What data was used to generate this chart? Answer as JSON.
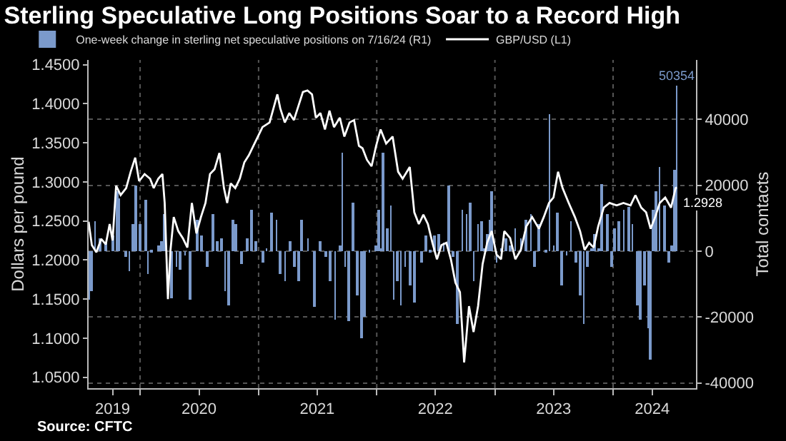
{
  "chart_data": {
    "type": "bar",
    "title": "Sterling Speculative Long Positions Soar to a Record High",
    "ylabel": "Dollars per pound",
    "y2label": "Total contacts",
    "annotations": [
      "Source: CFTC"
    ],
    "legend": "top left",
    "grid": true,
    "xlim": [
      "2019-07-26",
      "2024-09-13"
    ],
    "xticks": [
      {
        "value": "2019-10-08",
        "label": "2019"
      },
      {
        "value": "2020-01-01",
        "label": null
      },
      {
        "value": "2020-07-01",
        "label": "2020"
      },
      {
        "value": "2021-01-01",
        "label": null
      },
      {
        "value": "2021-07-01",
        "label": "2021"
      },
      {
        "value": "2022-01-01",
        "label": null
      },
      {
        "value": "2022-07-01",
        "label": "2022"
      },
      {
        "value": "2023-01-01",
        "label": null
      },
      {
        "value": "2023-07-01",
        "label": "2023"
      },
      {
        "value": "2024-01-01",
        "label": null
      },
      {
        "value": "2024-05-01",
        "label": "2024"
      }
    ],
    "ylim": [
      1.036,
      1.456
    ],
    "yticks": [
      {
        "value": 1.05,
        "label": "1.0500"
      },
      {
        "value": 1.1,
        "label": "1.1000"
      },
      {
        "value": 1.15,
        "label": "1.1500"
      },
      {
        "value": 1.2,
        "label": "1.2000"
      },
      {
        "value": 1.25,
        "label": "1.2500"
      },
      {
        "value": 1.3,
        "label": "1.3000"
      },
      {
        "value": 1.35,
        "label": "1.3500"
      },
      {
        "value": 1.4,
        "label": "1.4000"
      },
      {
        "value": 1.45,
        "label": "1.4500"
      }
    ],
    "y2lim": [
      -41600,
      58000
    ],
    "y2ticks": [
      -40000,
      -20000,
      0,
      20000,
      40000
    ],
    "series": [
      {
        "name": "One-week change in sterling net speculative positions on 7/16/24 (R1)",
        "axis": "y2",
        "color": "#7b9acb",
        "x": [
          "2019-07-26",
          "2019-08-03",
          "2019-08-15",
          "2019-08-29",
          "2019-09-17",
          "2019-10-08",
          "2019-10-22",
          "2019-10-29",
          "2019-11-19",
          "2019-11-29",
          "2019-12-10",
          "2019-12-20",
          "2020-01-02",
          "2020-01-17",
          "2020-01-25",
          "2020-02-05",
          "2020-02-26",
          "2020-03-07",
          "2020-03-17",
          "2020-04-08",
          "2020-04-22",
          "2020-05-05",
          "2020-05-19",
          "2020-06-03",
          "2020-06-24",
          "2020-07-08",
          "2020-07-26",
          "2020-08-12",
          "2020-08-26",
          "2020-09-10",
          "2020-09-20",
          "2020-10-02",
          "2020-10-15",
          "2020-10-24",
          "2020-11-08",
          "2020-11-26",
          "2020-12-10",
          "2020-12-24",
          "2021-01-14",
          "2021-01-25",
          "2021-02-11",
          "2021-02-25",
          "2021-03-10",
          "2021-03-24",
          "2021-04-07",
          "2021-04-21",
          "2021-05-05",
          "2021-05-15",
          "2021-06-02",
          "2021-06-23",
          "2021-07-11",
          "2021-07-28",
          "2021-08-11",
          "2021-08-25",
          "2021-09-09",
          "2021-09-17",
          "2021-09-25",
          "2021-10-07",
          "2021-10-20",
          "2021-11-02",
          "2021-11-14",
          "2021-11-25",
          "2021-12-09",
          "2021-12-29",
          "2022-01-06",
          "2022-01-13",
          "2022-01-20",
          "2022-02-04",
          "2022-02-14",
          "2022-02-22",
          "2022-03-06",
          "2022-03-16",
          "2022-03-30",
          "2022-04-13",
          "2022-04-27",
          "2022-05-18",
          "2022-06-02",
          "2022-06-16",
          "2022-06-29",
          "2022-07-13",
          "2022-07-27",
          "2022-08-11",
          "2022-08-25",
          "2022-09-08",
          "2022-09-22",
          "2022-10-06",
          "2022-10-16",
          "2022-10-27",
          "2022-11-10",
          "2022-11-20",
          "2022-12-01",
          "2022-12-08",
          "2022-12-18",
          "2022-12-23",
          "2023-01-06",
          "2023-01-20",
          "2023-02-04",
          "2023-02-17",
          "2023-03-05",
          "2023-03-22",
          "2023-04-08",
          "2023-04-22",
          "2023-05-03",
          "2023-05-17",
          "2023-06-08",
          "2023-06-18",
          "2023-07-02",
          "2023-07-13",
          "2023-07-27",
          "2023-08-10",
          "2023-08-24",
          "2023-09-08",
          "2023-09-22",
          "2023-10-02",
          "2023-10-13",
          "2023-10-27",
          "2023-11-06",
          "2023-11-17",
          "2023-11-28",
          "2023-12-15",
          "2023-12-29",
          "2024-01-06",
          "2024-01-20",
          "2024-02-03",
          "2024-02-17",
          "2024-03-01",
          "2024-03-15",
          "2024-03-24",
          "2024-04-08",
          "2024-04-19",
          "2024-04-26",
          "2024-05-03",
          "2024-05-13",
          "2024-05-24",
          "2024-06-08",
          "2024-06-22",
          "2024-06-29",
          "2024-07-08",
          "2024-07-16"
        ],
        "values": [
          -14900,
          -12000,
          9000,
          3900,
          2500,
          4600,
          18300,
          16200,
          -1900,
          -6200,
          8200,
          19800,
          8200,
          15500,
          -6900,
          -400,
          1700,
          3200,
          11100,
          -14200,
          -4800,
          -5500,
          -1200,
          -14900,
          9700,
          4600,
          -4800,
          11100,
          3200,
          3900,
          -12000,
          -16300,
          9700,
          8200,
          -4000,
          3900,
          12600,
          3200,
          -3300,
          1000,
          11800,
          9700,
          -6900,
          -9100,
          3200,
          -4800,
          -9100,
          9700,
          3900,
          -17000,
          3200,
          -1900,
          -9100,
          -20600,
          1700,
          29900,
          -4800,
          -21400,
          14700,
          -13400,
          -26400,
          -19900,
          -400,
          1700,
          12600,
          1000,
          29900,
          6800,
          14000,
          -14900,
          -9100,
          -16300,
          -4800,
          -10500,
          -15600,
          -3300,
          4600,
          -400,
          4600,
          5300,
          2500,
          19800,
          -1900,
          -22100,
          12600,
          11100,
          14700,
          -9100,
          8200,
          9000,
          1000,
          5300,
          9700,
          18300,
          -3300,
          1000,
          3900,
          1700,
          6800,
          3900,
          9700,
          11100,
          -4800,
          8200,
          -400,
          41400,
          1700,
          11800,
          -10500,
          -1200,
          9000,
          -3300,
          -13400,
          -22100,
          -4800,
          1000,
          5300,
          1000,
          20500,
          11100,
          -4800,
          6800,
          9000,
          12600,
          13300,
          8200,
          -16300,
          -20600,
          -10500,
          -23500,
          -32900,
          12600,
          18300,
          25600,
          14000,
          -3300,
          1700,
          24800,
          50354
        ],
        "value_labels": [
          null,
          null,
          null,
          null,
          null,
          null,
          null,
          null,
          null,
          null,
          null,
          null,
          null,
          null,
          null,
          null,
          null,
          null,
          null,
          null,
          null,
          null,
          null,
          null,
          null,
          null,
          null,
          null,
          null,
          null,
          null,
          null,
          null,
          null,
          null,
          null,
          null,
          null,
          null,
          null,
          null,
          null,
          null,
          null,
          null,
          null,
          null,
          null,
          null,
          null,
          null,
          null,
          null,
          null,
          null,
          null,
          null,
          null,
          null,
          null,
          null,
          null,
          null,
          null,
          null,
          null,
          null,
          null,
          null,
          null,
          null,
          null,
          null,
          null,
          null,
          null,
          null,
          null,
          null,
          null,
          null,
          null,
          null,
          null,
          null,
          null,
          null,
          null,
          null,
          null,
          null,
          null,
          null,
          null,
          null,
          null,
          null,
          null,
          null,
          null,
          null,
          null,
          null,
          null,
          null,
          null,
          null,
          null,
          null,
          null,
          null,
          null,
          null,
          null,
          null,
          null,
          null,
          null,
          null,
          null,
          null,
          null,
          null,
          null,
          null,
          null,
          null,
          null,
          null,
          null,
          null,
          null,
          null,
          null,
          null,
          null,
          null,
          null,
          "50354"
        ]
      },
      {
        "name": "GBP/USD (L1)",
        "type": "line",
        "color": "#ffffff",
        "x": [
          "2019-07-26",
          "2019-08-05",
          "2019-08-19",
          "2019-09-03",
          "2019-09-17",
          "2019-09-29",
          "2019-10-08",
          "2019-10-19",
          "2019-11-02",
          "2019-11-19",
          "2019-12-03",
          "2019-12-17",
          "2019-12-29",
          "2020-01-15",
          "2020-02-01",
          "2020-02-12",
          "2020-02-26",
          "2020-03-10",
          "2020-03-17",
          "2020-03-27",
          "2020-04-04",
          "2020-04-14",
          "2020-04-28",
          "2020-05-12",
          "2020-05-26",
          "2020-06-09",
          "2020-06-23",
          "2020-07-07",
          "2020-07-21",
          "2020-08-04",
          "2020-08-18",
          "2020-09-02",
          "2020-09-16",
          "2020-09-26",
          "2020-10-07",
          "2020-10-21",
          "2020-11-04",
          "2020-11-18",
          "2020-12-02",
          "2020-12-16",
          "2020-12-30",
          "2021-01-13",
          "2021-02-04",
          "2021-02-28",
          "2021-03-09",
          "2021-03-23",
          "2021-04-06",
          "2021-04-20",
          "2021-05-04",
          "2021-05-18",
          "2021-06-01",
          "2021-06-15",
          "2021-06-27",
          "2021-07-11",
          "2021-07-25",
          "2021-08-08",
          "2021-08-22",
          "2021-09-09",
          "2021-09-23",
          "2021-10-09",
          "2021-10-23",
          "2021-11-07",
          "2021-11-18",
          "2021-12-02",
          "2021-12-16",
          "2021-12-30",
          "2022-01-13",
          "2022-01-30",
          "2022-02-19",
          "2022-03-08",
          "2022-03-22",
          "2022-04-13",
          "2022-04-27",
          "2022-05-11",
          "2022-05-25",
          "2022-06-08",
          "2022-06-22",
          "2022-07-06",
          "2022-07-20",
          "2022-08-04",
          "2022-08-18",
          "2022-09-01",
          "2022-09-15",
          "2022-09-28",
          "2022-10-13",
          "2022-10-27",
          "2022-11-10",
          "2022-11-24",
          "2022-12-08",
          "2022-12-22",
          "2023-01-06",
          "2023-01-20",
          "2023-01-30",
          "2023-02-17",
          "2023-03-05",
          "2023-03-22",
          "2023-04-08",
          "2023-04-26",
          "2023-05-17",
          "2023-06-01",
          "2023-06-17",
          "2023-07-01",
          "2023-07-15",
          "2023-07-29",
          "2023-08-17",
          "2023-09-05",
          "2023-09-21",
          "2023-10-05",
          "2023-10-19",
          "2023-11-02",
          "2023-11-16",
          "2023-12-03",
          "2023-12-21",
          "2024-01-12",
          "2024-02-02",
          "2024-02-24",
          "2024-03-10",
          "2024-03-28",
          "2024-04-12",
          "2024-04-26",
          "2024-05-10",
          "2024-05-24",
          "2024-06-10",
          "2024-06-28",
          "2024-07-12",
          "2024-07-16"
        ],
        "values": [
          1.249,
          1.219,
          1.21,
          1.227,
          1.22,
          1.246,
          1.225,
          1.295,
          1.283,
          1.292,
          1.313,
          1.331,
          1.301,
          1.31,
          1.304,
          1.292,
          1.304,
          1.31,
          1.273,
          1.15,
          1.213,
          1.255,
          1.237,
          1.228,
          1.216,
          1.273,
          1.234,
          1.255,
          1.273,
          1.31,
          1.316,
          1.337,
          1.292,
          1.273,
          1.298,
          1.292,
          1.304,
          1.325,
          1.334,
          1.346,
          1.358,
          1.37,
          1.376,
          1.412,
          1.394,
          1.376,
          1.388,
          1.379,
          1.397,
          1.415,
          1.417,
          1.412,
          1.382,
          1.388,
          1.367,
          1.391,
          1.37,
          1.382,
          1.358,
          1.376,
          1.379,
          1.346,
          1.343,
          1.328,
          1.32,
          1.346,
          1.367,
          1.349,
          1.358,
          1.313,
          1.304,
          1.319,
          1.261,
          1.246,
          1.258,
          1.246,
          1.222,
          1.201,
          1.219,
          1.222,
          1.201,
          1.171,
          1.159,
          1.069,
          1.141,
          1.108,
          1.141,
          1.195,
          1.222,
          1.237,
          1.207,
          1.201,
          1.237,
          1.228,
          1.201,
          1.213,
          1.243,
          1.255,
          1.24,
          1.255,
          1.273,
          1.28,
          1.313,
          1.292,
          1.273,
          1.255,
          1.237,
          1.213,
          1.222,
          1.216,
          1.243,
          1.267,
          1.273,
          1.27,
          1.273,
          1.27,
          1.283,
          1.267,
          1.261,
          1.24,
          1.255,
          1.273,
          1.28,
          1.267,
          1.292,
          1.2928
        ],
        "value_labels": [
          null,
          null,
          null,
          null,
          null,
          null,
          null,
          null,
          null,
          null,
          null,
          null,
          null,
          null,
          null,
          null,
          null,
          null,
          null,
          null,
          null,
          null,
          null,
          null,
          null,
          null,
          null,
          null,
          null,
          null,
          null,
          null,
          null,
          null,
          null,
          null,
          null,
          null,
          null,
          null,
          null,
          null,
          null,
          null,
          null,
          null,
          null,
          null,
          null,
          null,
          null,
          null,
          null,
          null,
          null,
          null,
          null,
          null,
          null,
          null,
          null,
          null,
          null,
          null,
          null,
          null,
          null,
          null,
          null,
          null,
          null,
          null,
          null,
          null,
          null,
          null,
          null,
          null,
          null,
          null,
          null,
          null,
          null,
          null,
          null,
          null,
          null,
          null,
          null,
          null,
          null,
          null,
          null,
          null,
          null,
          null,
          null,
          null,
          null,
          null,
          null,
          null,
          null,
          null,
          null,
          null,
          null,
          null,
          null,
          null,
          null,
          null,
          null,
          null,
          null,
          null,
          null,
          null,
          null,
          null,
          null,
          null,
          null,
          null,
          null,
          "1.2928"
        ]
      }
    ]
  }
}
